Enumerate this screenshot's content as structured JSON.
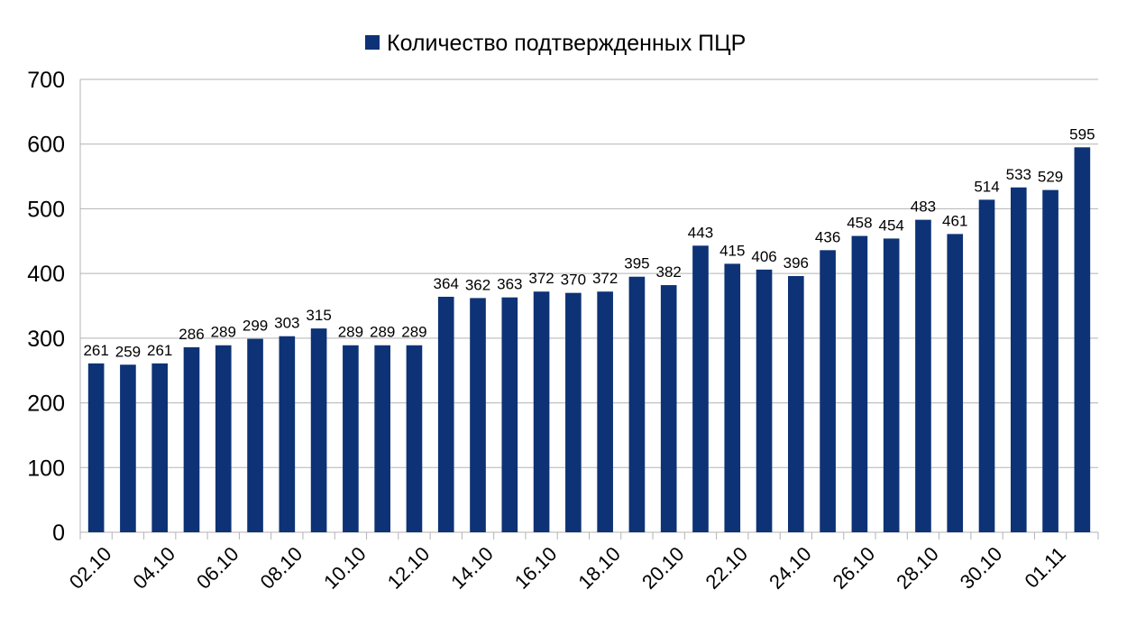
{
  "chart_data": {
    "type": "bar",
    "title": "",
    "xlabel": "",
    "ylabel": "",
    "ylim": [
      0,
      700
    ],
    "yticks": [
      0,
      100,
      200,
      300,
      400,
      500,
      600,
      700
    ],
    "grid": true,
    "legend_position": "top-center",
    "categories": [
      "02.10",
      "03.10",
      "04.10",
      "05.10",
      "06.10",
      "07.10",
      "08.10",
      "09.10",
      "10.10",
      "11.10",
      "12.10",
      "13.10",
      "14.10",
      "15.10",
      "16.10",
      "17.10",
      "18.10",
      "19.10",
      "20.10",
      "21.10",
      "22.10",
      "23.10",
      "24.10",
      "25.10",
      "26.10",
      "27.10",
      "28.10",
      "29.10",
      "30.10",
      "31.10",
      "01.11",
      "02.11"
    ],
    "visible_x_labels": [
      "02.10",
      "04.10",
      "06.10",
      "08.10",
      "10.10",
      "12.10",
      "14.10",
      "16.10",
      "18.10",
      "20.10",
      "22.10",
      "24.10",
      "26.10",
      "28.10",
      "30.10",
      "01.11"
    ],
    "series": [
      {
        "name": "Количество подтвержденных ПЦР",
        "color": "#0d3276",
        "values": [
          261,
          259,
          261,
          286,
          289,
          299,
          303,
          315,
          289,
          289,
          289,
          364,
          362,
          363,
          372,
          370,
          372,
          395,
          382,
          443,
          415,
          406,
          396,
          436,
          458,
          454,
          483,
          461,
          514,
          533,
          529,
          595
        ]
      }
    ]
  }
}
